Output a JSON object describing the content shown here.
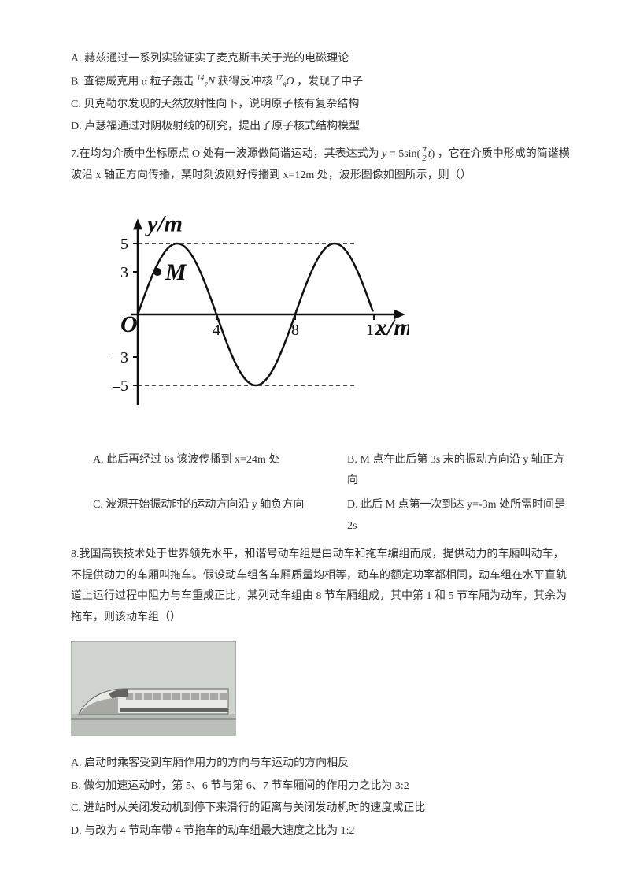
{
  "q6": {
    "A": "A. 赫兹通过一系列实验证实了麦克斯韦关于光的电磁理论",
    "B_pre": "B. 查德威克用 α 粒子轰击 ",
    "B_nuc1": {
      "a": "14",
      "z": "7",
      "sym": "N"
    },
    "B_mid": " 获得反冲核 ",
    "B_nuc2": {
      "a": "17",
      "z": "8",
      "sym": "O"
    },
    "B_post": " ，发现了中子",
    "C": "C. 贝克勒尔发现的天然放射性向下，说明原子核有复杂结构",
    "D": "D. 卢瑟福通过对阴极射线的研究，提出了原子核式结构模型"
  },
  "q7": {
    "stem_pre": "7.在均匀介质中坐标原点 O 处有一波源做简谐运动，其表达式为 ",
    "formula_y": "y",
    "formula_eq": " = 5sin(",
    "formula_frac": {
      "num": "π",
      "den": "2"
    },
    "formula_t": "t",
    "formula_close": ") ",
    "stem_post": "，它在介质中形成的简谐横波沿 x 轴正方向传播，某时刻波刚好传播到 x=12m 处，波形图像如图所示，则（）",
    "fig": {
      "ylabel": "y/m",
      "xlabel": "x/m",
      "pointM": "M",
      "origin": "O",
      "ytick_pos": [
        5,
        3
      ],
      "ytick_neg": [
        -3,
        -5
      ],
      "xticks": [
        4,
        8,
        12
      ],
      "amplitude": 5,
      "wavelength": 8,
      "stroke": "#101010",
      "linewidth": 2.5,
      "dash": "5,4",
      "font": "italic 22px Times New Roman",
      "font_bold": "bold italic 30px Times New Roman",
      "Mx": 1,
      "My": 3
    },
    "A": "A. 此后再经过 6s 该波传播到 x=24m 处",
    "B": "B. M 点在此后第 3s 末的振动方向沿 y 轴正方向",
    "C": "C. 波源开始振动时的运动方向沿 y 轴负方向",
    "D": "D. 此后 M 点第一次到达 y=-3m 处所需时间是 2s"
  },
  "q8": {
    "stem": "8.我国高铁技术处于世界领先水平，和谐号动车组是由动车和拖车编组而成，提供动力的车厢叫动车，不提供动力的车厢叫拖车。假设动车组各车厢质量均相等，动车的额定功率都相同，动车组在水平直轨道上运行过程中阻力与车重成正比，某列动车组由 8 节车厢组成，其中第 1 和 5 节车厢为动车，其余为拖车，则该动车组（）",
    "fig": {
      "sky": "#cfd4ce",
      "ground": "#b9bfb8",
      "train_light": "#e8e8e4",
      "train_mid": "#a8a9a2",
      "train_dark": "#63645f"
    },
    "A": "A. 启动时乘客受到车厢作用力的方向与车运动的方向相反",
    "B": "B. 做匀加速运动时，第 5、6 节与第 6、7 节车厢间的作用力之比为 3:2",
    "C": "C. 进站时从关闭发动机到停下来滑行的距离与关闭发动机时的速度成正比",
    "D": "D. 与改为 4 节动车带 4 节拖车的动车组最大速度之比为 1:2"
  }
}
